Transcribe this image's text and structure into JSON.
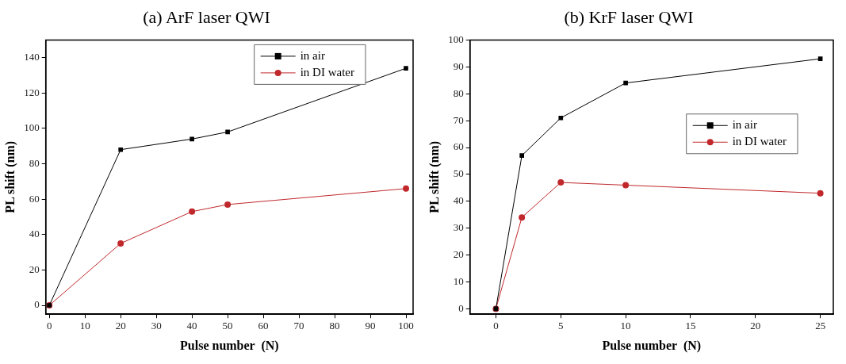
{
  "chart_data": [
    {
      "type": "line",
      "title": "(a) ArF laser QWI",
      "xlabel": "Pulse number  (N)",
      "ylabel": "PL shift (nm)",
      "x": [
        0,
        20,
        40,
        50,
        100
      ],
      "xlim": [
        -1,
        102
      ],
      "xticks": [
        0,
        10,
        20,
        30,
        40,
        50,
        60,
        70,
        80,
        90,
        100
      ],
      "ylim": [
        -5,
        150
      ],
      "yticks": [
        0,
        20,
        40,
        60,
        80,
        100,
        120,
        140
      ],
      "grid": false,
      "legend": "top right",
      "series": [
        {
          "name": "in air",
          "color": "#000000",
          "marker": "square",
          "values": [
            0,
            88,
            94,
            98,
            134
          ]
        },
        {
          "name": "in DI water",
          "color": "#c0282c",
          "marker": "circle",
          "values": [
            0,
            35,
            53,
            57,
            66
          ]
        }
      ]
    },
    {
      "type": "line",
      "title": "(b) KrF laser QWI",
      "xlabel": "Pulse number  (N)",
      "ylabel": "PL shift (nm)",
      "x": [
        0,
        2,
        5,
        10,
        25
      ],
      "xlim": [
        -2,
        26
      ],
      "xticks": [
        0,
        5,
        10,
        15,
        20,
        25
      ],
      "ylim": [
        -2,
        100
      ],
      "yticks": [
        0,
        10,
        20,
        30,
        40,
        50,
        60,
        70,
        80,
        90,
        100
      ],
      "grid": false,
      "legend": "right",
      "series": [
        {
          "name": "in air",
          "color": "#000000",
          "marker": "square",
          "values": [
            0,
            57,
            71,
            84,
            93
          ]
        },
        {
          "name": "in DI water",
          "color": "#c0282c",
          "marker": "circle",
          "values": [
            0,
            34,
            47,
            46,
            43
          ]
        }
      ]
    }
  ]
}
